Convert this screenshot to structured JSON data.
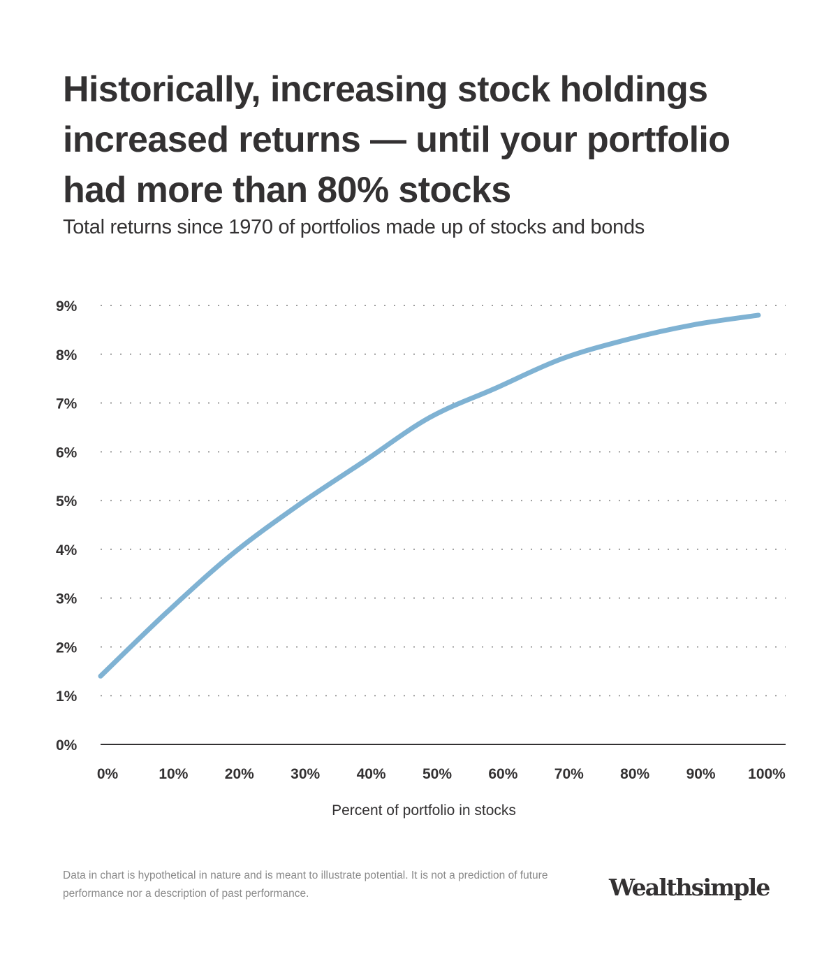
{
  "header": {
    "title": "Historically, increasing stock holdings increased returns — until your portfolio had more than 80% stocks",
    "subtitle": "Total returns since 1970 of portfolios made up of stocks and bonds"
  },
  "chart_data": {
    "type": "line",
    "title": "Historically, increasing stock holdings increased returns — until your portfolio had more than 80% stocks",
    "subtitle": "Total returns since 1970 of portfolios made up of stocks and bonds",
    "xlabel": "Percent of portfolio in stocks",
    "ylabel": "",
    "xlim": [
      0,
      100
    ],
    "ylim": [
      0,
      9
    ],
    "x_ticks": [
      "0%",
      "10%",
      "20%",
      "30%",
      "40%",
      "50%",
      "60%",
      "70%",
      "80%",
      "90%",
      "100%"
    ],
    "y_ticks": [
      "0%",
      "1%",
      "2%",
      "3%",
      "4%",
      "5%",
      "6%",
      "7%",
      "8%",
      "9%"
    ],
    "grid": "horizontal dotted",
    "legend": "none",
    "series": [
      {
        "name": "Total return",
        "color": "#7fb2d3",
        "x": [
          0,
          10,
          20,
          30,
          40,
          50,
          60,
          70,
          80,
          90,
          100
        ],
        "y": [
          1.4,
          2.7,
          3.9,
          4.9,
          5.8,
          6.7,
          7.3,
          7.9,
          8.3,
          8.6,
          8.8
        ]
      }
    ]
  },
  "footer": {
    "disclaimer": "Data in chart is hypothetical in nature and is meant to illustrate potential. It is not a prediction of future performance nor a description of past performance.",
    "logo": "Wealthsimple"
  },
  "colors": {
    "text": "#333132",
    "line": "#7fb2d3",
    "grid": "#9b9b9b",
    "axis": "#333132",
    "disclaimer": "#8a8a8a"
  }
}
